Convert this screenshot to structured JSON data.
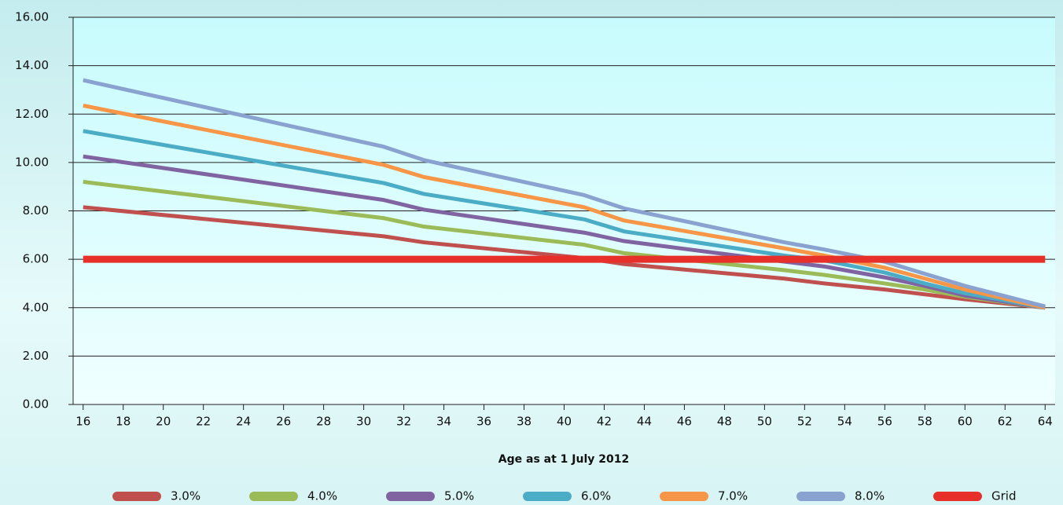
{
  "chart_data": {
    "type": "line",
    "x_label": "Age as at 1 July 2012",
    "x": [
      16,
      31,
      33,
      41,
      43,
      51,
      53,
      56,
      58,
      60,
      64
    ],
    "xlim": [
      15.5,
      64.5
    ],
    "xticks": [
      16,
      18,
      20,
      22,
      24,
      26,
      28,
      30,
      32,
      34,
      36,
      38,
      40,
      42,
      44,
      46,
      48,
      50,
      52,
      54,
      56,
      58,
      60,
      62,
      64
    ],
    "ylim": [
      0,
      16
    ],
    "yticks": [
      {
        "value": 0,
        "label": "0.00"
      },
      {
        "value": 2,
        "label": "2.00"
      },
      {
        "value": 4,
        "label": "4.00"
      },
      {
        "value": 6,
        "label": "6.00"
      },
      {
        "value": 8,
        "label": "8.00"
      },
      {
        "value": 10,
        "label": "10.00"
      },
      {
        "value": 12,
        "label": "12.00"
      },
      {
        "value": 14,
        "label": "14.00"
      },
      {
        "value": 16,
        "label": "16.00"
      }
    ],
    "grid": true,
    "legend": "bottom",
    "series": [
      {
        "name": "3.0%",
        "color": "#c0504d",
        "width": 5,
        "values": [
          8.15,
          6.95,
          6.7,
          6.05,
          5.8,
          5.2,
          5.0,
          4.75,
          4.55,
          4.35,
          4.0
        ]
      },
      {
        "name": "4.0%",
        "color": "#9bbb59",
        "width": 5,
        "values": [
          9.2,
          7.7,
          7.35,
          6.6,
          6.25,
          5.55,
          5.35,
          5.0,
          4.75,
          4.45,
          4.0
        ]
      },
      {
        "name": "5.0%",
        "color": "#8064a2",
        "width": 5,
        "values": [
          10.25,
          8.45,
          8.05,
          7.1,
          6.75,
          5.9,
          5.7,
          5.25,
          4.9,
          4.5,
          4.0
        ]
      },
      {
        "name": "6.0%",
        "color": "#4bacc6",
        "width": 5,
        "values": [
          11.3,
          9.15,
          8.7,
          7.65,
          7.15,
          6.15,
          5.95,
          5.45,
          5.0,
          4.6,
          4.0
        ]
      },
      {
        "name": "7.0%",
        "color": "#f79646",
        "width": 5,
        "values": [
          12.35,
          9.9,
          9.4,
          8.15,
          7.6,
          6.45,
          6.15,
          5.65,
          5.2,
          4.75,
          4.0
        ]
      },
      {
        "name": "8.0%",
        "color": "#8aa2cf",
        "width": 5,
        "values": [
          13.4,
          10.65,
          10.1,
          8.65,
          8.1,
          6.7,
          6.4,
          5.9,
          5.4,
          4.9,
          4.05
        ]
      },
      {
        "name": "Grid",
        "color": "#e8302a",
        "width": 9,
        "values": [
          6,
          6,
          6,
          6,
          6,
          6,
          6,
          6,
          6,
          6,
          6
        ]
      }
    ]
  }
}
